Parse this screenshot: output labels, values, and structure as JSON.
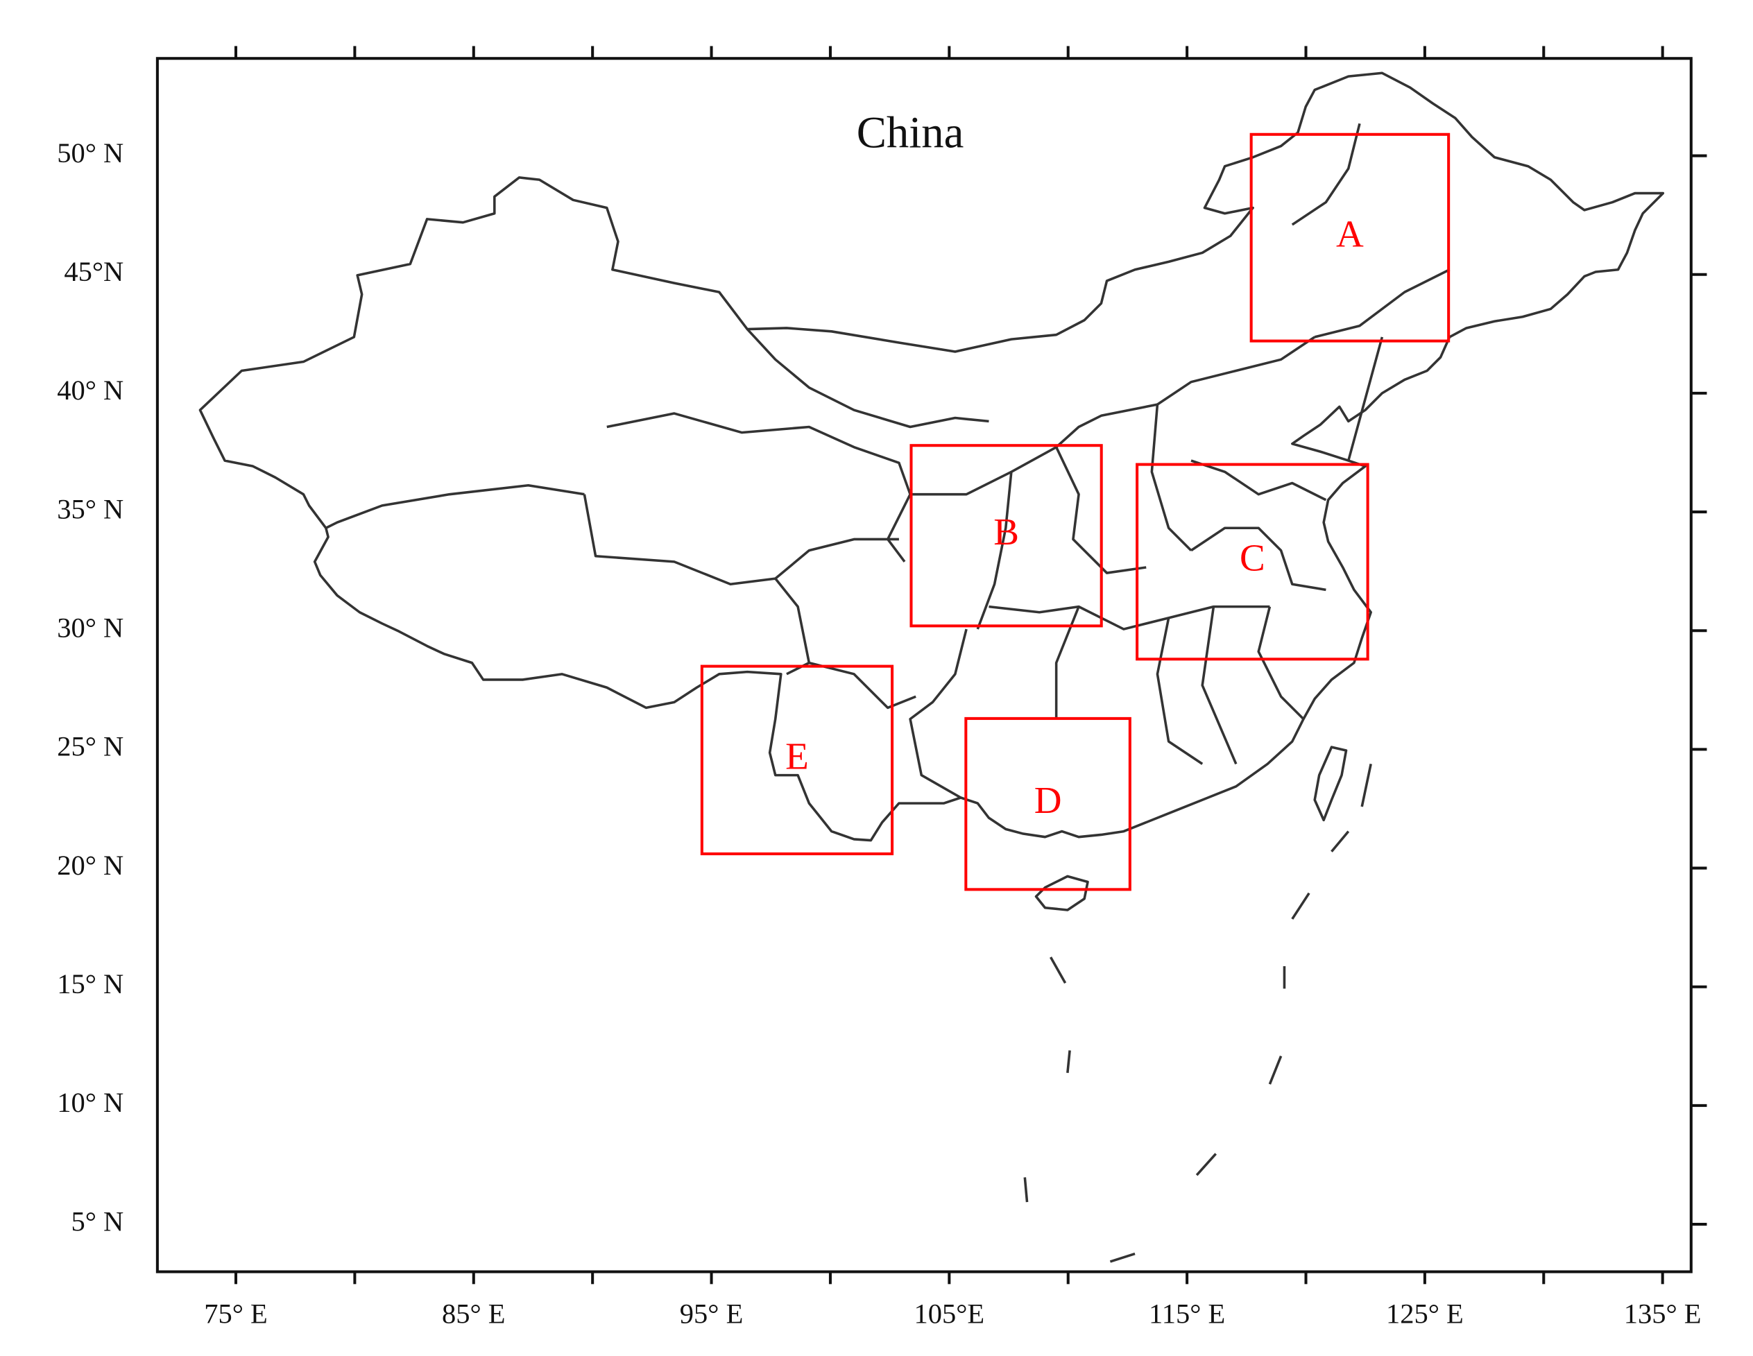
{
  "chart_data": {
    "type": "map",
    "title": "China",
    "xlim": [
      71.7,
      136.2
    ],
    "ylim": [
      3.0,
      54.1
    ],
    "xticks": [
      {
        "value": 75,
        "label": "75° E"
      },
      {
        "value": 85,
        "label": "85° E"
      },
      {
        "value": 95,
        "label": "95° E"
      },
      {
        "value": 105,
        "label": "105°E"
      },
      {
        "value": 115,
        "label": "115° E"
      },
      {
        "value": 125,
        "label": "125° E"
      },
      {
        "value": 135,
        "label": "135° E"
      }
    ],
    "xminorticks": [
      80,
      90,
      100,
      110,
      120,
      130
    ],
    "yticks": [
      {
        "value": 5,
        "label": "5° N"
      },
      {
        "value": 10,
        "label": "10° N"
      },
      {
        "value": 15,
        "label": "15° N"
      },
      {
        "value": 20,
        "label": "20° N"
      },
      {
        "value": 25,
        "label": "25° N"
      },
      {
        "value": 30,
        "label": "30° N"
      },
      {
        "value": 35,
        "label": "35° N"
      },
      {
        "value": 40,
        "label": "40° N"
      },
      {
        "value": 45,
        "label": "45°N"
      },
      {
        "value": 50,
        "label": "50° N"
      }
    ],
    "box_color": "#ff0000",
    "regions": [
      {
        "label": "A",
        "lon": [
          117.7,
          126.0
        ],
        "lat": [
          42.2,
          50.9
        ]
      },
      {
        "label": "B",
        "lon": [
          103.4,
          111.4
        ],
        "lat": [
          30.2,
          37.8
        ]
      },
      {
        "label": "C",
        "lon": [
          112.9,
          122.6
        ],
        "lat": [
          28.8,
          37.0
        ]
      },
      {
        "label": "D",
        "lon": [
          105.7,
          112.6
        ],
        "lat": [
          19.1,
          26.3
        ]
      },
      {
        "label": "E",
        "lon": [
          94.6,
          102.6
        ],
        "lat": [
          20.6,
          28.5
        ]
      }
    ]
  }
}
